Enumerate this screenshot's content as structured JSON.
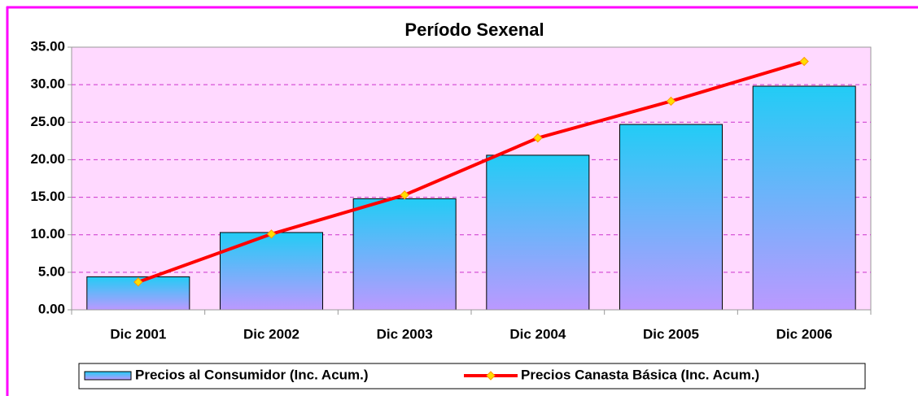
{
  "chart_data": {
    "type": "bar",
    "title": "Período Sexenal",
    "categories": [
      "Dic 2001",
      "Dic 2002",
      "Dic 2003",
      "Dic 2004",
      "Dic 2005",
      "Dic 2006"
    ],
    "series": [
      {
        "name": "Precios al Consumidor (Inc. Acum.)",
        "type": "bar",
        "color": "#22ccf5",
        "values": [
          4.4,
          10.3,
          14.8,
          20.6,
          24.7,
          29.8
        ]
      },
      {
        "name": "Precios Canasta Básica (Inc. Acum.)",
        "type": "line",
        "color": "#ff0000",
        "values": [
          3.7,
          10.1,
          15.3,
          22.9,
          27.8,
          33.1
        ]
      }
    ],
    "ylim": [
      0,
      35
    ],
    "yticks": [
      {
        "value": 0,
        "label": "0.00"
      },
      {
        "value": 5,
        "label": "5.00"
      },
      {
        "value": 10,
        "label": "10.00"
      },
      {
        "value": 15,
        "label": "15.00"
      },
      {
        "value": 20,
        "label": "20.00"
      },
      {
        "value": 25,
        "label": "25.00"
      },
      {
        "value": 30,
        "label": "30.00"
      },
      {
        "value": 35,
        "label": "35.00"
      }
    ],
    "grid": true,
    "legend": "bottom"
  }
}
